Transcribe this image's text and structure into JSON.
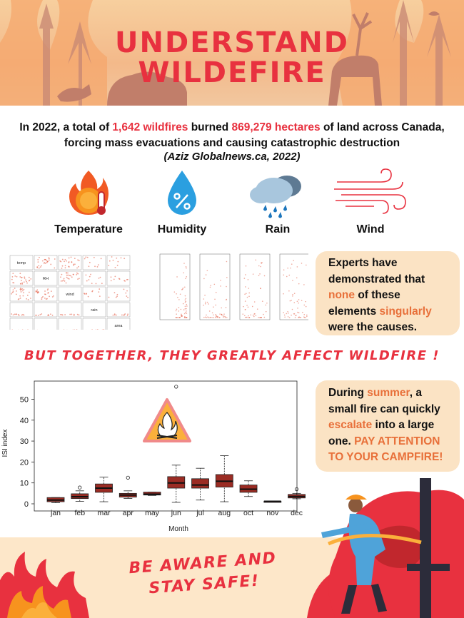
{
  "header": {
    "title_line1": "UNDERSTAND",
    "title_line2": "WILDEFIRE"
  },
  "intro": {
    "part1": "In 2022, a total of ",
    "count": "1,642 wildfires",
    "part2": " burned ",
    "area": "869,279 hectares",
    "part3": " of land across Canada, forcing mass evacuations and causing catastrophic destruction",
    "citation": "(Aziz Globalnews.ca, 2022)"
  },
  "factors": [
    {
      "label": "Temperature",
      "icon": "thermometer-fire-icon"
    },
    {
      "label": "Humidity",
      "icon": "humidity-drop-icon"
    },
    {
      "label": "Rain",
      "icon": "rain-cloud-icon"
    },
    {
      "label": "Wind",
      "icon": "wind-icon"
    }
  ],
  "pairs_plot": {
    "vars": [
      "temp",
      "RH",
      "wind",
      "rain",
      "area"
    ]
  },
  "callout_experts": {
    "t1": "Experts have demonstrated that ",
    "none": "none",
    "t2": " of these elements ",
    "singularly": "singularly",
    "t3": " were the causes."
  },
  "together": "BUT TOGETHER, THEY GREATLY AFFECT WILDFIRE !",
  "callout_summer": {
    "t1": "During ",
    "summer": "summer",
    "t2": ", a small fire can quickly ",
    "escalate": "escalate",
    "t3": " into a large one. ",
    "warning": "PAY ATTENTION TO YOUR CAMPFIRE!"
  },
  "chart_data": {
    "type": "boxplot",
    "xlabel": "Month",
    "ylabel": "ISI index",
    "ylim": [
      0,
      58
    ],
    "yticks": [
      0,
      10,
      20,
      30,
      40,
      50
    ],
    "categories": [
      "jan",
      "feb",
      "mar",
      "apr",
      "may",
      "jun",
      "jul",
      "aug",
      "oct",
      "nov",
      "dec"
    ],
    "boxes": [
      {
        "month": "jan",
        "min": 0.5,
        "q1": 1.0,
        "median": 1.8,
        "q3": 3.0,
        "max": 3.0,
        "outliers": []
      },
      {
        "month": "feb",
        "min": 1.2,
        "q1": 2.5,
        "median": 3.4,
        "q3": 4.8,
        "max": 6.2,
        "outliers": [
          7.8
        ]
      },
      {
        "month": "mar",
        "min": 1.0,
        "q1": 5.5,
        "median": 7.5,
        "q3": 9.5,
        "max": 12.8,
        "outliers": []
      },
      {
        "month": "apr",
        "min": 2.6,
        "q1": 3.2,
        "median": 4.2,
        "q3": 5.0,
        "max": 6.2,
        "outliers": [
          12.5
        ]
      },
      {
        "month": "may",
        "min": 4.0,
        "q1": 4.2,
        "median": 4.6,
        "q3": 5.6,
        "max": 5.6,
        "outliers": []
      },
      {
        "month": "jun",
        "min": 0.7,
        "q1": 7.5,
        "median": 10.0,
        "q3": 13.0,
        "max": 18.5,
        "outliers": [
          56
        ]
      },
      {
        "month": "jul",
        "min": 1.8,
        "q1": 7.5,
        "median": 9.0,
        "q3": 12.0,
        "max": 17.0,
        "outliers": []
      },
      {
        "month": "aug",
        "min": 1.0,
        "q1": 8.0,
        "median": 10.8,
        "q3": 14.0,
        "max": 23.0,
        "outliers": []
      },
      {
        "month": "oct",
        "min": 3.5,
        "q1": 5.5,
        "median": 7.0,
        "q3": 9.0,
        "max": 11.0,
        "outliers": []
      },
      {
        "month": "nov",
        "min": 1.2,
        "q1": 1.2,
        "median": 1.2,
        "q3": 1.2,
        "max": 1.2,
        "outliers": []
      },
      {
        "month": "dec",
        "min": 2.4,
        "q1": 2.8,
        "median": 3.5,
        "q3": 4.5,
        "max": 5.0,
        "outliers": [
          7.0
        ]
      }
    ],
    "box_color": "#9b2c24"
  },
  "footer": {
    "line1": "BE AWARE AND",
    "line2": "STAY SAFE!"
  },
  "colors": {
    "accent_red": "#e8313f",
    "accent_orange": "#e8703a",
    "callout_bg": "#fbe3c4",
    "banner_bg": "#f3b98a"
  }
}
